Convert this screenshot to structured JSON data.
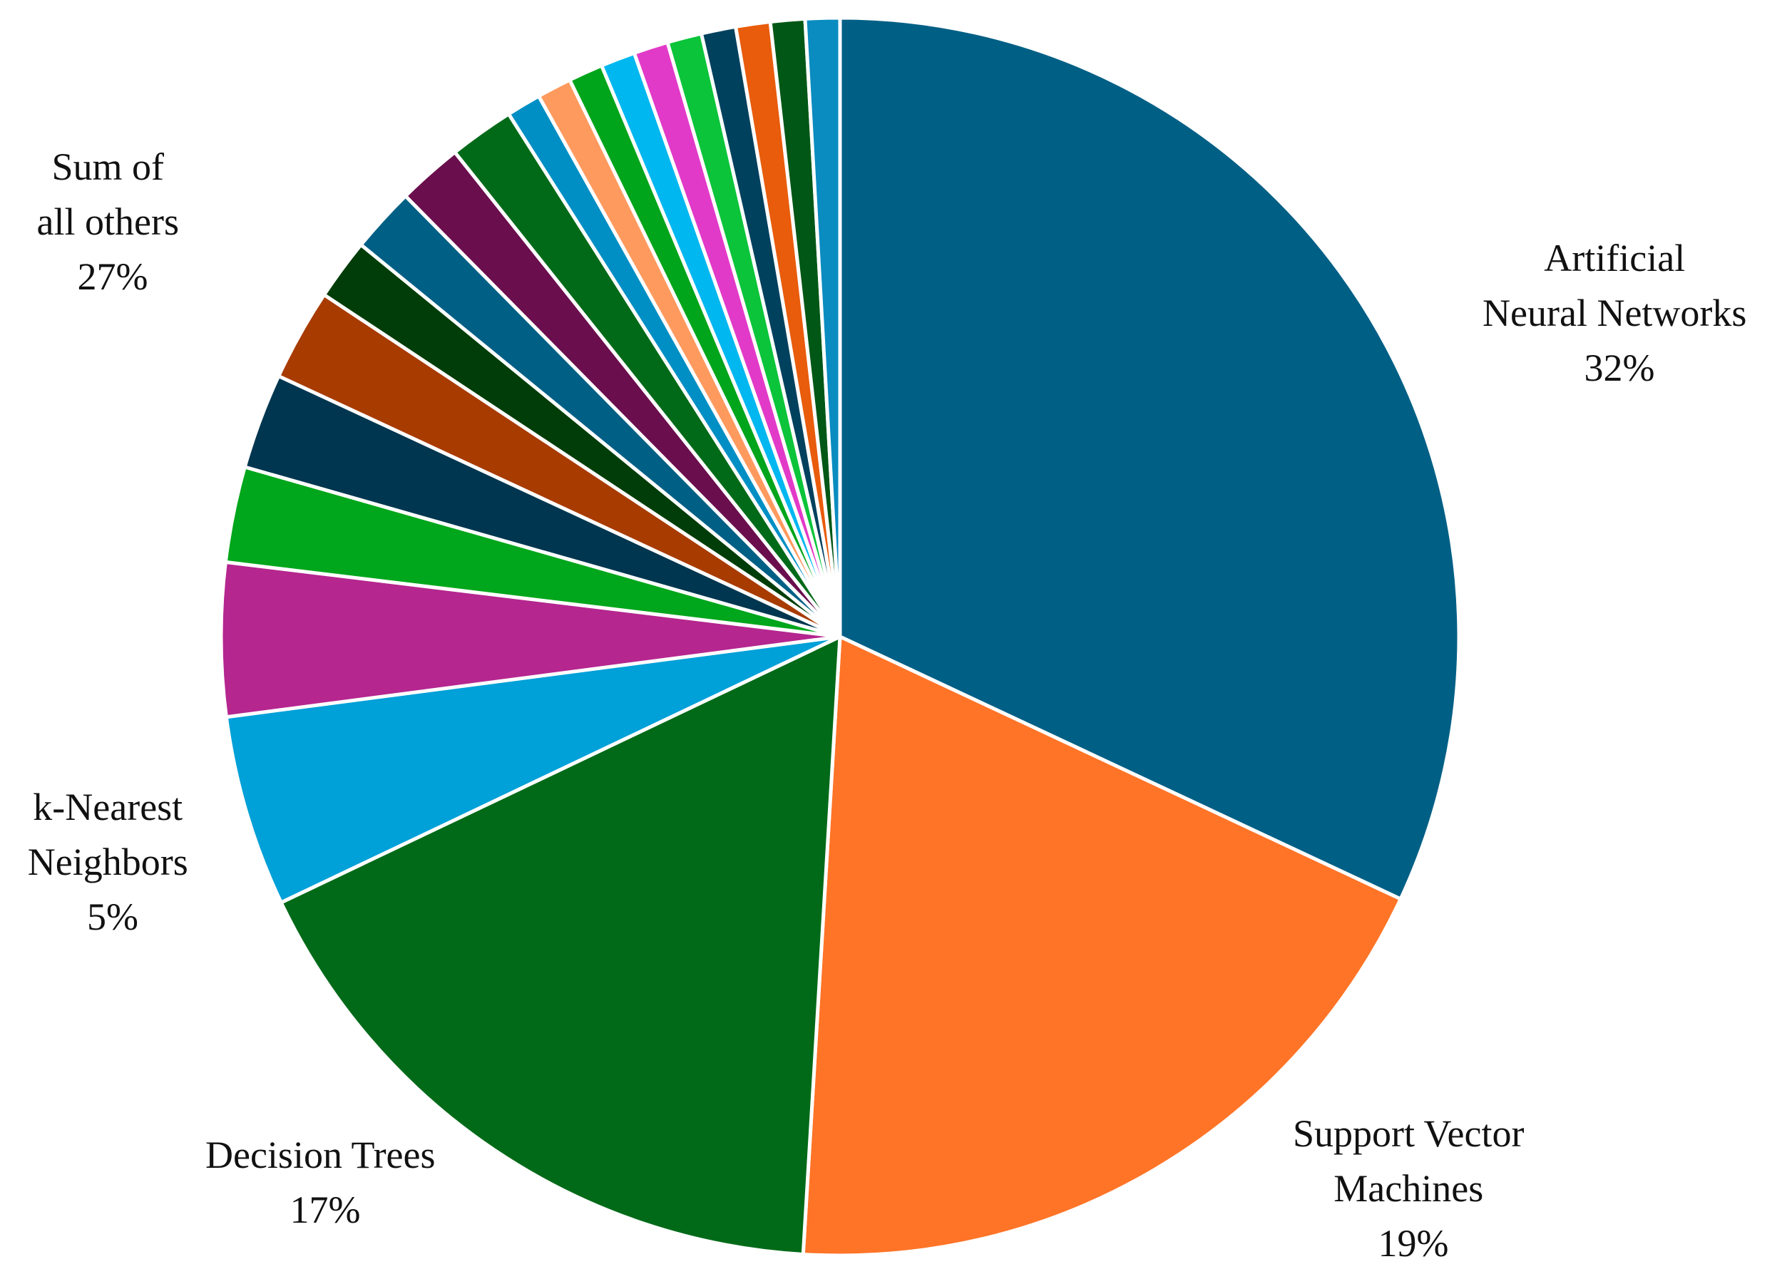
{
  "chart_data": {
    "type": "pie",
    "title": "",
    "start_angle_deg": 0,
    "direction": "clockwise",
    "slices": [
      {
        "name": "Artificial Neural Networks",
        "value": 32,
        "display": "32%",
        "color": "#005F85",
        "label_lines": [
          "Artificial",
          "Neural Networks",
          "32%"
        ]
      },
      {
        "name": "Support Vector Machines",
        "value": 19,
        "display": "19%",
        "color": "#FF7427",
        "label_lines": [
          "Support Vector",
          "Machines",
          "19%"
        ]
      },
      {
        "name": "Decision Trees",
        "value": 17,
        "display": "17%",
        "color": "#006A18",
        "label_lines": [
          "Decision Trees",
          "17%"
        ]
      },
      {
        "name": "k-Nearest Neighbors",
        "value": 5,
        "display": "5%",
        "color": "#00A0D8",
        "label_lines": [
          "k-Nearest",
          "Neighbors",
          "5%"
        ]
      },
      {
        "name": "",
        "value": 4,
        "color": "#B5268F"
      },
      {
        "name": "",
        "value": 2.5,
        "color": "#00A61B"
      },
      {
        "name": "",
        "value": 2.5,
        "color": "#00364F"
      },
      {
        "name": "",
        "value": 2.4,
        "color": "#A83B00"
      },
      {
        "name": "",
        "value": 1.6,
        "color": "#003D08"
      },
      {
        "name": "",
        "value": 1.7,
        "color": "#005F85"
      },
      {
        "name": "",
        "value": 1.7,
        "color": "#6A0E4D"
      },
      {
        "name": "",
        "value": 1.7,
        "color": "#006A18"
      },
      {
        "name": "",
        "value": 0.9,
        "color": "#008FC4"
      },
      {
        "name": "",
        "value": 0.9,
        "color": "#FF9A5E"
      },
      {
        "name": "",
        "value": 0.9,
        "color": "#01A51B"
      },
      {
        "name": "",
        "value": 0.9,
        "color": "#00B7F0"
      },
      {
        "name": "",
        "value": 0.9,
        "color": "#E23AC8"
      },
      {
        "name": "",
        "value": 0.9,
        "color": "#0BC43A"
      },
      {
        "name": "",
        "value": 0.9,
        "color": "#00415E"
      },
      {
        "name": "",
        "value": 0.9,
        "color": "#E85C0C"
      },
      {
        "name": "",
        "value": 0.9,
        "color": "#005716"
      },
      {
        "name": "",
        "value": 0.9,
        "color": "#0A8CC0"
      }
    ],
    "group_label": {
      "label_lines": [
        "Sum of",
        "all others",
        "27%"
      ]
    }
  }
}
